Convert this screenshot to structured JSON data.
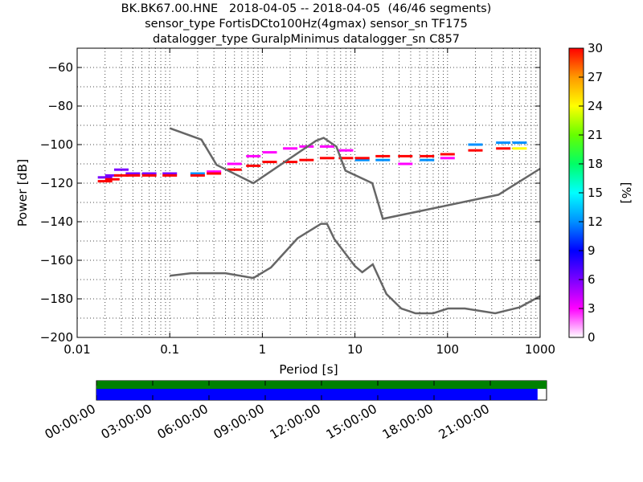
{
  "title": {
    "line1": "BK.BK67.00.HNE   2018-04-05 -- 2018-04-05  (46/46 segments)",
    "line2": "sensor_type FortisDCto100Hz(4gmax) sensor_sn TF175",
    "line3": "datalogger_type GuralpMinimus datalogger_sn C857"
  },
  "chart_data": [
    {
      "type": "heatmap",
      "title": "BK.BK67.00.HNE   2018-04-05 -- 2018-04-05  (46/46 segments)",
      "xlabel": "Period [s]",
      "ylabel": "Power [dB]",
      "xscale": "log",
      "xlim": [
        0.01,
        1000
      ],
      "ylim": [
        -200,
        -50
      ],
      "xticks": [
        0.01,
        0.1,
        1,
        10,
        100,
        1000
      ],
      "xtick_labels": [
        "0.01",
        "0.1",
        "1",
        "10",
        "100",
        "1000"
      ],
      "yticks": [
        -60,
        -80,
        -100,
        -120,
        -140,
        -160,
        -180,
        -200
      ],
      "ytick_labels": [
        "−60",
        "−80",
        "−100",
        "−120",
        "−140",
        "−160",
        "−180",
        "−200"
      ],
      "grid": true,
      "colorbar": {
        "label": "[%]",
        "range": [
          0,
          30
        ],
        "ticks": [
          0,
          3,
          6,
          9,
          12,
          15,
          18,
          21,
          24,
          27,
          30
        ],
        "colors": [
          "#ffffff",
          "#ff00ff",
          "#7a00ff",
          "#0000ff",
          "#0090ff",
          "#00ffff",
          "#00ff66",
          "#66ff00",
          "#ffff00",
          "#ff9900",
          "#ff0000"
        ]
      },
      "noise_models": [
        {
          "periods": [
            0.1,
            0.22,
            0.32,
            0.8,
            3.8,
            4.6,
            6.3,
            7.9,
            15.4,
            20,
            354.8,
            1000
          ],
          "values": [
            -91.5,
            -97.4,
            -110.5,
            -120,
            -98,
            -96.5,
            -101,
            -113.5,
            -120,
            -138.5,
            -126,
            -112.5
          ]
        },
        {
          "periods": [
            0.1,
            0.17,
            0.4,
            0.8,
            1.24,
            2.4,
            4.3,
            5,
            6,
            10,
            12,
            15.6,
            21.9,
            31.6,
            45,
            70,
            101,
            154,
            328,
            600,
            1000
          ],
          "values": [
            -168,
            -166.7,
            -166.7,
            -169.2,
            -163.7,
            -148.6,
            -141.1,
            -141.1,
            -149,
            -163,
            -166.2,
            -162.1,
            -177.5,
            -185,
            -187.5,
            -187.5,
            -185,
            -185,
            -187.5,
            -184.4,
            -178.6
          ]
        }
      ],
      "psd_bins": [
        {
          "period": 0.02,
          "power": -117,
          "percent": 6
        },
        {
          "period": 0.02,
          "power": -119,
          "percent": 30
        },
        {
          "period": 0.024,
          "power": -116,
          "percent": 6
        },
        {
          "period": 0.024,
          "power": -118,
          "percent": 30
        },
        {
          "period": 0.03,
          "power": -113,
          "percent": 6
        },
        {
          "period": 0.03,
          "power": -116,
          "percent": 30
        },
        {
          "period": 0.04,
          "power": -115,
          "percent": 6
        },
        {
          "period": 0.04,
          "power": -116,
          "percent": 30
        },
        {
          "period": 0.06,
          "power": -115,
          "percent": 6
        },
        {
          "period": 0.06,
          "power": -116,
          "percent": 30
        },
        {
          "period": 0.1,
          "power": -115,
          "percent": 6
        },
        {
          "period": 0.1,
          "power": -116,
          "percent": 30
        },
        {
          "period": 0.2,
          "power": -115,
          "percent": 12
        },
        {
          "period": 0.2,
          "power": -116,
          "percent": 30
        },
        {
          "period": 0.3,
          "power": -114,
          "percent": 3
        },
        {
          "period": 0.3,
          "power": -115,
          "percent": 30
        },
        {
          "period": 0.5,
          "power": -110,
          "percent": 3
        },
        {
          "period": 0.5,
          "power": -113,
          "percent": 30
        },
        {
          "period": 0.8,
          "power": -106,
          "percent": 3
        },
        {
          "period": 0.8,
          "power": -111,
          "percent": 30
        },
        {
          "period": 1.2,
          "power": -104,
          "percent": 3
        },
        {
          "period": 1.2,
          "power": -109,
          "percent": 30
        },
        {
          "period": 2,
          "power": -102,
          "percent": 3
        },
        {
          "period": 2,
          "power": -109,
          "percent": 30
        },
        {
          "period": 3,
          "power": -101,
          "percent": 3
        },
        {
          "period": 3,
          "power": -108,
          "percent": 30
        },
        {
          "period": 5,
          "power": -101,
          "percent": 3
        },
        {
          "period": 5,
          "power": -107,
          "percent": 30
        },
        {
          "period": 8,
          "power": -103,
          "percent": 3
        },
        {
          "period": 8,
          "power": -107,
          "percent": 30
        },
        {
          "period": 12,
          "power": -108,
          "percent": 12
        },
        {
          "period": 12,
          "power": -107,
          "percent": 30
        },
        {
          "period": 20,
          "power": -108,
          "percent": 12
        },
        {
          "period": 20,
          "power": -106,
          "percent": 30
        },
        {
          "period": 35,
          "power": -110,
          "percent": 3
        },
        {
          "period": 35,
          "power": -106,
          "percent": 30
        },
        {
          "period": 60,
          "power": -108,
          "percent": 12
        },
        {
          "period": 60,
          "power": -106,
          "percent": 30
        },
        {
          "period": 100,
          "power": -107,
          "percent": 3
        },
        {
          "period": 100,
          "power": -105,
          "percent": 30
        },
        {
          "period": 200,
          "power": -100,
          "percent": 12
        },
        {
          "period": 200,
          "power": -103,
          "percent": 30
        },
        {
          "period": 400,
          "power": -99,
          "percent": 12
        },
        {
          "period": 400,
          "power": -102,
          "percent": 30
        },
        {
          "period": 600,
          "power": -99,
          "percent": 12
        },
        {
          "period": 600,
          "power": -102,
          "percent": 24
        }
      ]
    },
    {
      "type": "bar",
      "description_free": true,
      "time_ticks": [
        "00:00:00",
        "03:00:00",
        "06:00:00",
        "09:00:00",
        "12:00:00",
        "15:00:00",
        "18:00:00",
        "21:00:00"
      ],
      "data_coverage_fraction": 0.98,
      "colors": {
        "data": "#0000ff",
        "gaps": "#ffffff",
        "frame": "#008000"
      }
    }
  ]
}
